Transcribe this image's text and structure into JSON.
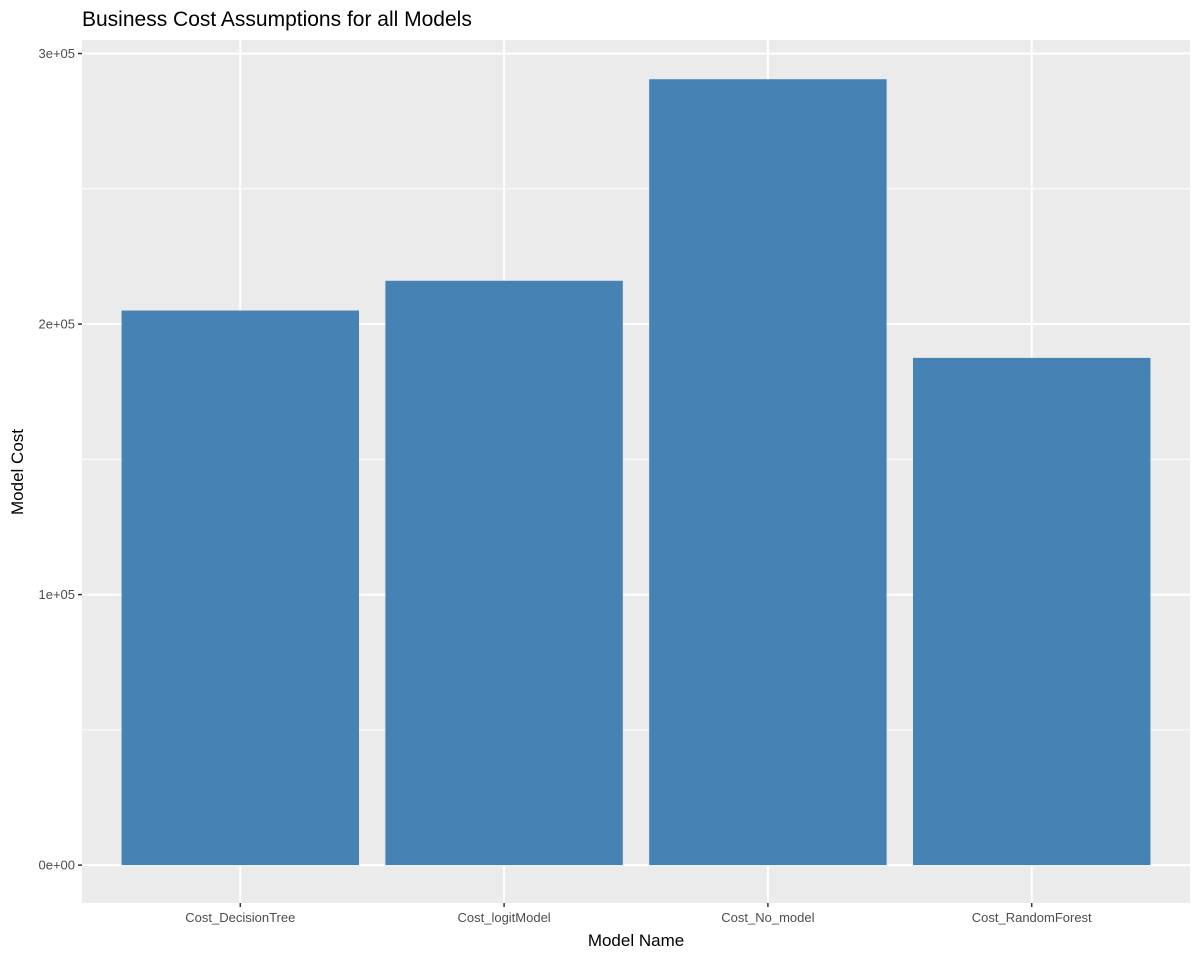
{
  "chart_data": {
    "type": "bar",
    "title": "Business Cost Assumptions for all Models",
    "xlabel": "Model Name",
    "ylabel": "Model Cost",
    "categories": [
      "Cost_DecisionTree",
      "Cost_logitModel",
      "Cost_No_model",
      "Cost_RandomForest"
    ],
    "values": [
      205000,
      216000,
      290500,
      187500
    ],
    "ylim": [
      -14000,
      305000
    ],
    "yticks": [
      0,
      100000,
      200000,
      300000
    ],
    "ytick_labels": [
      "0e+00",
      "1e+05",
      "2e+05",
      "3e+05"
    ],
    "grid": true,
    "legend": "none",
    "colors": {
      "bar": "#4682b4",
      "panel_background": "#ebebeb",
      "grid": "#ffffff",
      "tick": "#333333"
    }
  }
}
